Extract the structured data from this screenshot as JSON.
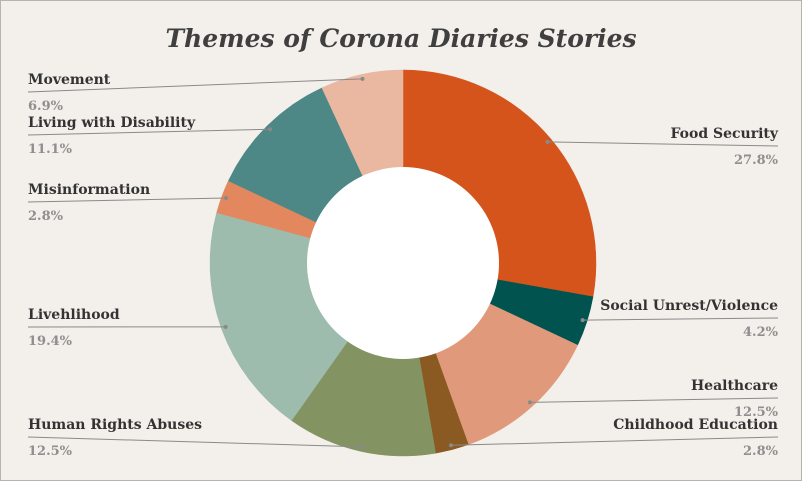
{
  "chart_data": {
    "type": "pie",
    "donut": true,
    "title": "Themes of Corona Diaries Stories",
    "slices": [
      {
        "label": "Food Security",
        "value_label": "27.8%",
        "value": 27.8,
        "color": "#d4541c"
      },
      {
        "label": "Social Unrest/Violence",
        "value_label": "4.2%",
        "value": 4.2,
        "color": "#00534f"
      },
      {
        "label": "Healthcare",
        "value_label": "12.5%",
        "value": 12.5,
        "color": "#e09a7b"
      },
      {
        "label": "Childhood Education",
        "value_label": "2.8%",
        "value": 2.8,
        "color": "#8a5a22"
      },
      {
        "label": "Human Rights Abuses",
        "value_label": "12.5%",
        "value": 12.5,
        "color": "#839462"
      },
      {
        "label": "Livehlihood",
        "value_label": "19.4%",
        "value": 19.4,
        "color": "#9dbcad"
      },
      {
        "label": "Misinformation",
        "value_label": "2.8%",
        "value": 2.8,
        "color": "#e3875f"
      },
      {
        "label": "Living with Disability",
        "value_label": "11.1%",
        "value": 11.1,
        "color": "#4e8886"
      },
      {
        "label": "Movement",
        "value_label": "6.9%",
        "value": 6.9,
        "color": "#eab7a1"
      }
    ]
  }
}
